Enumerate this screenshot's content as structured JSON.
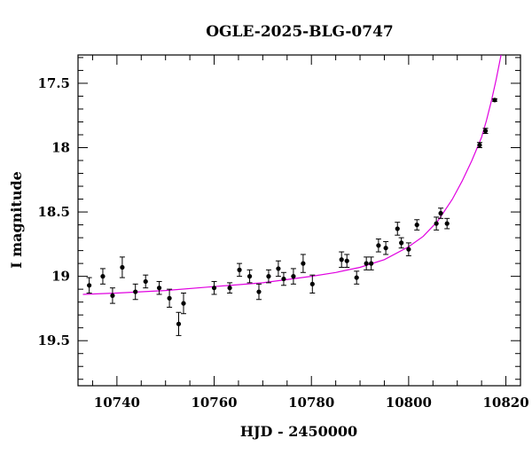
{
  "chart_data": {
    "type": "scatter",
    "title": "OGLE-2025-BLG-0747",
    "xlabel": "HJD - 2450000",
    "ylabel": "I magnitude",
    "xlim": [
      10732,
      10823
    ],
    "ylim": [
      19.85,
      17.28
    ],
    "y_inverted": true,
    "x_ticks": [
      10740,
      10760,
      10780,
      10800,
      10820
    ],
    "x_tick_labels": [
      "10740",
      "10760",
      "10780",
      "10800",
      "10820"
    ],
    "y_ticks": [
      17.5,
      18,
      18.5,
      19,
      19.5
    ],
    "y_tick_labels": [
      "17.5",
      "18",
      "18.5",
      "19",
      "19.5"
    ],
    "grid": false,
    "legend": "none",
    "colors": {
      "points": "#000000",
      "model": "#e000e0",
      "frame": "#000000"
    },
    "series": [
      {
        "kind": "points_with_errorbars",
        "x": [
          10734.3,
          10737.1,
          10739.1,
          10741.1,
          10743.8,
          10745.9,
          10748.7,
          10750.8,
          10752.7,
          10753.7,
          10760.0,
          10763.2,
          10765.2,
          10767.3,
          10769.2,
          10771.2,
          10773.2,
          10774.3,
          10776.3,
          10778.3,
          10780.2,
          10786.2,
          10787.3,
          10789.3,
          10791.3,
          10792.3,
          10793.8,
          10795.3,
          10797.7,
          10798.5,
          10800.0,
          10801.7,
          10805.7,
          10806.6,
          10807.9,
          10814.6,
          10815.8,
          10817.7
        ],
        "y": [
          19.07,
          19.0,
          19.15,
          18.93,
          19.12,
          19.04,
          19.09,
          19.17,
          19.37,
          19.21,
          19.09,
          19.09,
          18.95,
          19.0,
          19.12,
          19.0,
          18.94,
          19.02,
          19.0,
          18.9,
          19.06,
          18.87,
          18.88,
          19.01,
          18.9,
          18.9,
          18.76,
          18.78,
          18.63,
          18.74,
          18.79,
          18.6,
          18.59,
          18.51,
          18.59,
          17.98,
          17.87,
          17.63
        ],
        "err": [
          0.06,
          0.06,
          0.06,
          0.08,
          0.06,
          0.05,
          0.05,
          0.07,
          0.09,
          0.08,
          0.05,
          0.04,
          0.05,
          0.05,
          0.06,
          0.05,
          0.06,
          0.05,
          0.06,
          0.07,
          0.07,
          0.06,
          0.05,
          0.05,
          0.05,
          0.05,
          0.05,
          0.05,
          0.05,
          0.04,
          0.05,
          0.04,
          0.05,
          0.04,
          0.04,
          0.02,
          0.02,
          0.01
        ]
      },
      {
        "kind": "model_curve",
        "x": [
          10733,
          10740,
          10750,
          10760,
          10770,
          10780,
          10785,
          10790,
          10795,
          10800,
          10803,
          10806,
          10809,
          10811,
          10813,
          10815,
          10816,
          10817,
          10818,
          10819
        ],
        "y": [
          19.14,
          19.13,
          19.11,
          19.08,
          19.05,
          19.0,
          18.97,
          18.93,
          18.87,
          18.77,
          18.69,
          18.57,
          18.4,
          18.26,
          18.1,
          17.92,
          17.79,
          17.64,
          17.47,
          17.28
        ]
      }
    ]
  }
}
